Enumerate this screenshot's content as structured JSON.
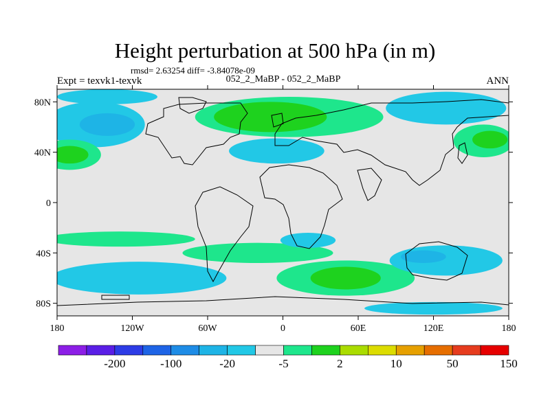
{
  "chart_data": {
    "type": "contour-map",
    "title": "Height perturbation at 500 hPa (in m)",
    "subtitle": "rmsd= 2.63254 diff= -3.84078e-09",
    "left_label": "Expt = texvk1-texvk",
    "center_label": "052_2_MaBP - 052_2_MaBP",
    "right_label": "ANN",
    "x_range": [
      -180,
      180
    ],
    "y_range": [
      -90,
      90
    ],
    "x_ticks": [
      {
        "value": -180,
        "label": "180"
      },
      {
        "value": -120,
        "label": "120W"
      },
      {
        "value": -60,
        "label": "60W"
      },
      {
        "value": 0,
        "label": "0"
      },
      {
        "value": 60,
        "label": "60E"
      },
      {
        "value": 120,
        "label": "120E"
      },
      {
        "value": 180,
        "label": "180"
      }
    ],
    "y_ticks": [
      {
        "value": 80,
        "label": "80N"
      },
      {
        "value": 40,
        "label": "40N"
      },
      {
        "value": 0,
        "label": "0"
      },
      {
        "value": -40,
        "label": "40S"
      },
      {
        "value": -80,
        "label": "80S"
      }
    ],
    "colorbar": {
      "colors": [
        "#8c1ee6",
        "#5a1ee6",
        "#2d3ce6",
        "#1e64e6",
        "#1e8ce6",
        "#1eb4e6",
        "#22c8e6",
        "#e6e6e6",
        "#1ee68c",
        "#1ed21e",
        "#aadc00",
        "#dcdc00",
        "#e6a000",
        "#e66e00",
        "#e63c1e",
        "#e60000"
      ],
      "labels": [
        {
          "after_index": 1,
          "text": "-200"
        },
        {
          "after_index": 3,
          "text": "-100"
        },
        {
          "after_index": 5,
          "text": "-20"
        },
        {
          "after_index": 7,
          "text": "-5"
        },
        {
          "after_index": 9,
          "text": "2"
        },
        {
          "after_index": 11,
          "text": "10"
        },
        {
          "after_index": 13,
          "text": "50"
        },
        {
          "after_index": 15,
          "text": "150"
        }
      ]
    },
    "regions": [
      {
        "name": "north-pacific-negative",
        "level": "-5",
        "color": "#22c8e6",
        "center": [
          -150,
          62
        ],
        "radius": [
          40,
          18
        ]
      },
      {
        "name": "north-pacific-negative-core",
        "level": "-20",
        "color": "#1eb4e6",
        "center": [
          -140,
          62
        ],
        "radius": [
          22,
          9
        ]
      },
      {
        "name": "arctic-negative",
        "level": "-5",
        "color": "#22c8e6",
        "center": [
          -140,
          84
        ],
        "radius": [
          40,
          6
        ]
      },
      {
        "name": "north-atlantic-europe-positive",
        "level": "2",
        "color": "#1ee68c",
        "center": [
          5,
          68
        ],
        "radius": [
          75,
          16
        ]
      },
      {
        "name": "north-atlantic-europe-positive-core",
        "level": "10",
        "color": "#1ed21e",
        "center": [
          -10,
          68
        ],
        "radius": [
          45,
          12
        ]
      },
      {
        "name": "west-pacific-positive",
        "level": "2",
        "color": "#1ee68c",
        "center": [
          -170,
          38
        ],
        "radius": [
          25,
          12
        ]
      },
      {
        "name": "west-pacific-positive-core",
        "level": "10",
        "color": "#1ed21e",
        "center": [
          -170,
          38
        ],
        "radius": [
          15,
          7
        ]
      },
      {
        "name": "mideast-negative",
        "level": "-5",
        "color": "#22c8e6",
        "center": [
          -5,
          41
        ],
        "radius": [
          38,
          10
        ]
      },
      {
        "name": "east-asia-negative",
        "level": "-5",
        "color": "#22c8e6",
        "center": [
          130,
          75
        ],
        "radius": [
          48,
          13
        ]
      },
      {
        "name": "northwest-pacific-positive",
        "level": "2",
        "color": "#1ee68c",
        "center": [
          160,
          49
        ],
        "radius": [
          24,
          13
        ]
      },
      {
        "name": "northwest-pacific-positive-core",
        "level": "10",
        "color": "#1ed21e",
        "center": [
          165,
          50
        ],
        "radius": [
          14,
          7
        ]
      },
      {
        "name": "southern-ocean-positive-west",
        "level": "2",
        "color": "#1ee68c",
        "center": [
          -130,
          -29
        ],
        "radius": [
          60,
          6
        ]
      },
      {
        "name": "southern-ocean-negative-west",
        "level": "-5",
        "color": "#22c8e6",
        "center": [
          -115,
          -60
        ],
        "radius": [
          70,
          13
        ]
      },
      {
        "name": "south-atlantic-positive-band",
        "level": "2",
        "color": "#1ee68c",
        "center": [
          -20,
          -40
        ],
        "radius": [
          60,
          8
        ]
      },
      {
        "name": "south-atlantic-negative",
        "level": "-5",
        "color": "#22c8e6",
        "center": [
          20,
          -30
        ],
        "radius": [
          22,
          6
        ]
      },
      {
        "name": "south-indian-positive",
        "level": "2",
        "color": "#1ee68c",
        "center": [
          50,
          -60
        ],
        "radius": [
          55,
          14
        ]
      },
      {
        "name": "south-indian-positive-core",
        "level": "10",
        "color": "#1ed21e",
        "center": [
          50,
          -60
        ],
        "radius": [
          28,
          9
        ]
      },
      {
        "name": "australia-negative",
        "level": "-5",
        "color": "#22c8e6",
        "center": [
          130,
          -46
        ],
        "radius": [
          45,
          12
        ]
      },
      {
        "name": "australia-negative-core",
        "level": "-20",
        "color": "#1eb4e6",
        "center": [
          112,
          -43
        ],
        "radius": [
          18,
          5
        ]
      },
      {
        "name": "antarctic-negative",
        "level": "-5",
        "color": "#22c8e6",
        "center": [
          120,
          -84
        ],
        "radius": [
          55,
          5
        ]
      }
    ]
  }
}
